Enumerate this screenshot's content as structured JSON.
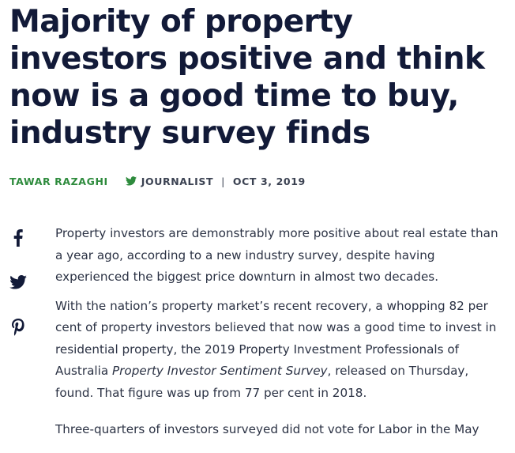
{
  "article": {
    "headline": "Majority of property investors positive and think now is a good time to buy, industry survey finds",
    "byline": {
      "author": "TAWAR RAZAGHI",
      "role": "JOURNALIST",
      "separator": "|",
      "date": "OCT 3, 2019"
    },
    "paragraphs": [
      {
        "text": "Property investors are demonstrably more positive about real estate than a year ago, according to a new industry survey, despite having experienced the biggest price downturn in almost two decades."
      },
      {
        "text_before": "With the nation’s property market’s recent recovery, a whopping 82 per cent of property investors believed that now was a good time to invest in residential property, the 2019 Property Investment Professionals of Australia ",
        "emphasis": "Property Investor Sentiment Survey",
        "text_after": ", released on Thursday, found. That figure was up from 77 per cent in 2018."
      },
      {
        "text": "Three-quarters of investors surveyed did not vote for Labor in the May"
      }
    ]
  },
  "share": {
    "icons": [
      "facebook-icon",
      "twitter-icon",
      "pinterest-icon"
    ]
  },
  "colors": {
    "headline": "#121a38",
    "author": "#2e8b3d",
    "twitter_bird": "#2e8b3d",
    "body_text": "#2b3244",
    "share_icons": "#121a38"
  }
}
